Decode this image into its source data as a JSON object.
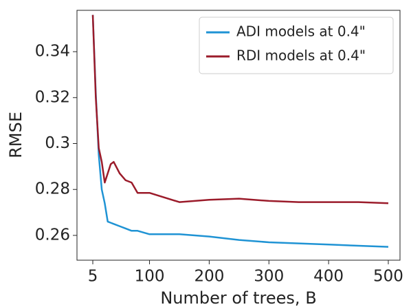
{
  "chart_data": {
    "type": "line",
    "x_label": "Number of trees, B",
    "y_label": "RMSE",
    "x": [
      5,
      10,
      15,
      20,
      25,
      30,
      35,
      40,
      50,
      60,
      70,
      80,
      100,
      150,
      200,
      250,
      300,
      350,
      400,
      450,
      500
    ],
    "series": [
      {
        "name": "ADI models at 0.4\"",
        "color": "#1f93d4",
        "values": [
          0.356,
          0.322,
          0.295,
          0.28,
          0.274,
          0.266,
          0.2655,
          0.265,
          0.264,
          0.263,
          0.262,
          0.262,
          0.2605,
          0.2605,
          0.2595,
          0.258,
          0.257,
          0.2565,
          0.256,
          0.2555,
          0.255
        ]
      },
      {
        "name": "RDI models at 0.4\"",
        "color": "#9b1b2a",
        "values": [
          0.356,
          0.32,
          0.298,
          0.292,
          0.283,
          0.287,
          0.291,
          0.292,
          0.287,
          0.284,
          0.283,
          0.2785,
          0.2785,
          0.2745,
          0.2755,
          0.276,
          0.275,
          0.2745,
          0.2745,
          0.2745,
          0.274
        ]
      }
    ],
    "xlim": [
      -21.5,
      519.6
    ],
    "xticks": [
      5,
      100,
      200,
      300,
      400,
      500
    ],
    "ylim": [
      0.2492,
      0.358
    ],
    "yticks": [
      0.26,
      0.28,
      0.3,
      0.32,
      0.34
    ],
    "legend": "upper right"
  }
}
